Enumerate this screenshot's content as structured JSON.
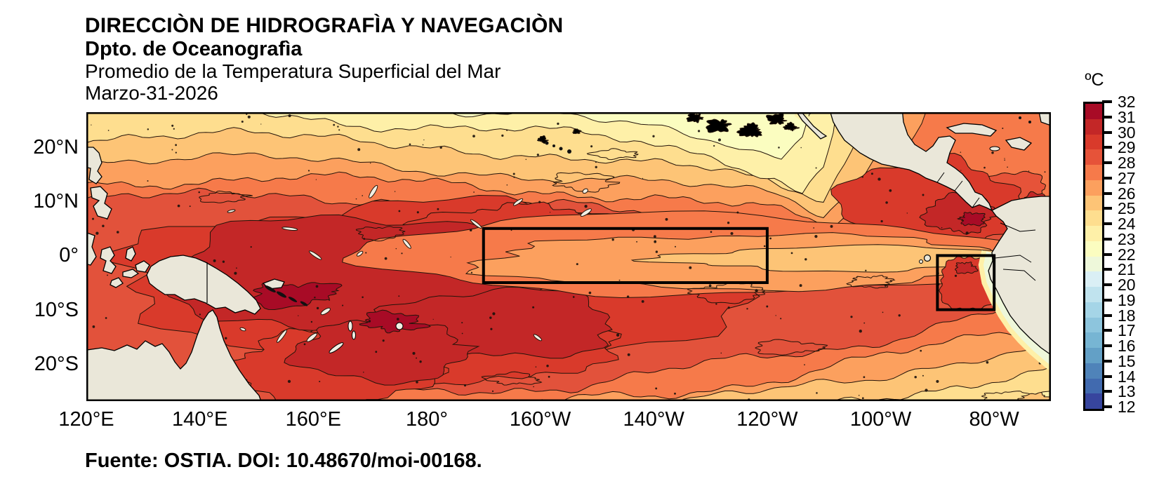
{
  "header": {
    "line1": "DIRECCIÒN DE HIDROGRAFÌA Y NAVEGACIÒN",
    "line2": "Dpto. de Oceanografìa",
    "line3": "Promedio de la Temperatura Superficial del Mar",
    "line4": "Marzo-31-2026"
  },
  "footer": {
    "text": "Fuente: OSTIA. DOI: 10.48670/moi-00168."
  },
  "chart_data": {
    "type": "heatmap",
    "title": "Promedio de la Temperatura Superficial del Mar",
    "date": "Marzo-31-2026",
    "organization": "DIRECCIÒN DE HIDROGRAFÌA Y NAVEGACIÒN - Dpto. de Oceanografìa",
    "source": "Fuente: OSTIA. DOI: 10.48670/moi-00168.",
    "units": "ºC",
    "x_axis": {
      "ticks": [
        {
          "label": "120°E",
          "lon": 120
        },
        {
          "label": "140°E",
          "lon": 140
        },
        {
          "label": "160°E",
          "lon": 160
        },
        {
          "label": "180°",
          "lon": 180
        },
        {
          "label": "160°W",
          "lon": -160
        },
        {
          "label": "140°W",
          "lon": -140
        },
        {
          "label": "120°W",
          "lon": -120
        },
        {
          "label": "100°W",
          "lon": -100
        },
        {
          "label": "80°W",
          "lon": -80
        }
      ]
    },
    "y_axis": {
      "ticks": [
        {
          "label": "20°N",
          "lat": 20
        },
        {
          "label": "10°N",
          "lat": 10
        },
        {
          "label": "0°",
          "lat": 0
        },
        {
          "label": "10°S",
          "lat": -10
        },
        {
          "label": "20°S",
          "lat": -20
        }
      ]
    },
    "map_extent": {
      "lon_range_deg": [
        120,
        -70
      ],
      "lat_range_deg": [
        26.5,
        -27
      ]
    },
    "colorbar": {
      "title": "ºC",
      "min": 12,
      "max": 32,
      "tick_interval": 1,
      "tick_labels_top_to_bottom": [
        32,
        31,
        30,
        29,
        28,
        27,
        26,
        25,
        24,
        23,
        22,
        21,
        20,
        19,
        18,
        17,
        16,
        15,
        14,
        13,
        12
      ],
      "palette_low_to_high": [
        "#37459e",
        "#416aaf",
        "#4f83b9",
        "#63a0c6",
        "#77b5d3",
        "#8dc5dd",
        "#a5d5e7",
        "#c0e3ee",
        "#daeff5",
        "#eef8da",
        "#fbfdc0",
        "#fef0a8",
        "#fede8f",
        "#fdc476",
        "#fca05e",
        "#f67a4a",
        "#e65339",
        "#d93a2b",
        "#c32727",
        "#a80b26"
      ]
    },
    "regions": [
      {
        "id": "nino-3.4-box",
        "lon_deg": [
          -170,
          -120
        ],
        "lat_deg": [
          5,
          -5
        ]
      },
      {
        "id": "nino-1-2-box",
        "lon_deg": [
          -90,
          -80
        ],
        "lat_deg": [
          0,
          -10
        ]
      }
    ],
    "features": [
      {
        "area": "western Pacific warm pool",
        "sst_c": "29-31"
      },
      {
        "area": "central equatorial tongue (inside Nino 3.4 box)",
        "sst_c": "26-28"
      },
      {
        "area": "eastern Pacific off Panama",
        "sst_c": "29-31"
      },
      {
        "area": "Nino 1+2 coastal zone",
        "sst_c": "28-30"
      },
      {
        "area": "Peru-Chile coastal band",
        "sst_c": "20-24"
      },
      {
        "area": "northern subtropical margin (25°N)",
        "sst_c": "22-25"
      },
      {
        "area": "southeastern subtropics",
        "sst_c": "23-26"
      },
      {
        "colors": {
          "land": "#eae7d9",
          "contour_line": "#23140a",
          "region_box": "#000000"
        }
      }
    ]
  }
}
